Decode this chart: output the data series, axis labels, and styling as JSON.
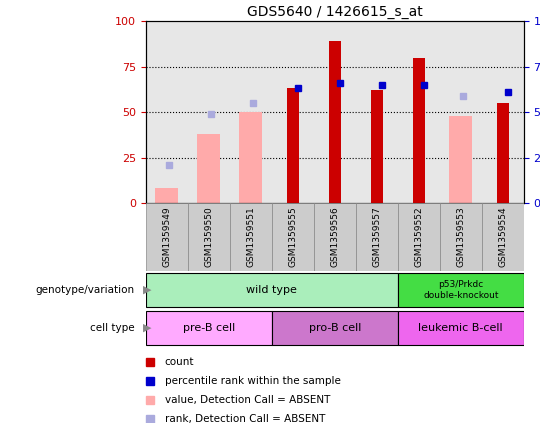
{
  "title": "GDS5640 / 1426615_s_at",
  "samples": [
    "GSM1359549",
    "GSM1359550",
    "GSM1359551",
    "GSM1359555",
    "GSM1359556",
    "GSM1359557",
    "GSM1359552",
    "GSM1359553",
    "GSM1359554"
  ],
  "count_values": [
    0,
    0,
    0,
    63,
    89,
    62,
    80,
    0,
    55
  ],
  "percentile_values": [
    0,
    0,
    0,
    63,
    66,
    65,
    65,
    0,
    61
  ],
  "absent_value": [
    8,
    38,
    50,
    0,
    0,
    0,
    0,
    48,
    0
  ],
  "absent_rank": [
    21,
    49,
    55,
    0,
    0,
    0,
    0,
    59,
    0
  ],
  "has_count": [
    false,
    false,
    false,
    true,
    true,
    true,
    true,
    false,
    true
  ],
  "has_percentile": [
    false,
    false,
    false,
    true,
    true,
    true,
    true,
    false,
    true
  ],
  "has_absent_value": [
    true,
    true,
    true,
    false,
    false,
    false,
    false,
    true,
    false
  ],
  "has_absent_rank": [
    true,
    true,
    true,
    false,
    false,
    false,
    false,
    true,
    false
  ],
  "count_color": "#cc0000",
  "percentile_color": "#0000cc",
  "absent_value_color": "#ffaaaa",
  "absent_rank_color": "#aaaadd",
  "wt_color": "#aaeebb",
  "ko_color": "#44dd44",
  "pre_b_color": "#ffaaff",
  "pro_b_color": "#cc77cc",
  "leu_color": "#ee66ee",
  "ylim": [
    0,
    100
  ],
  "legend_labels": [
    "count",
    "percentile rank within the sample",
    "value, Detection Call = ABSENT",
    "rank, Detection Call = ABSENT"
  ]
}
